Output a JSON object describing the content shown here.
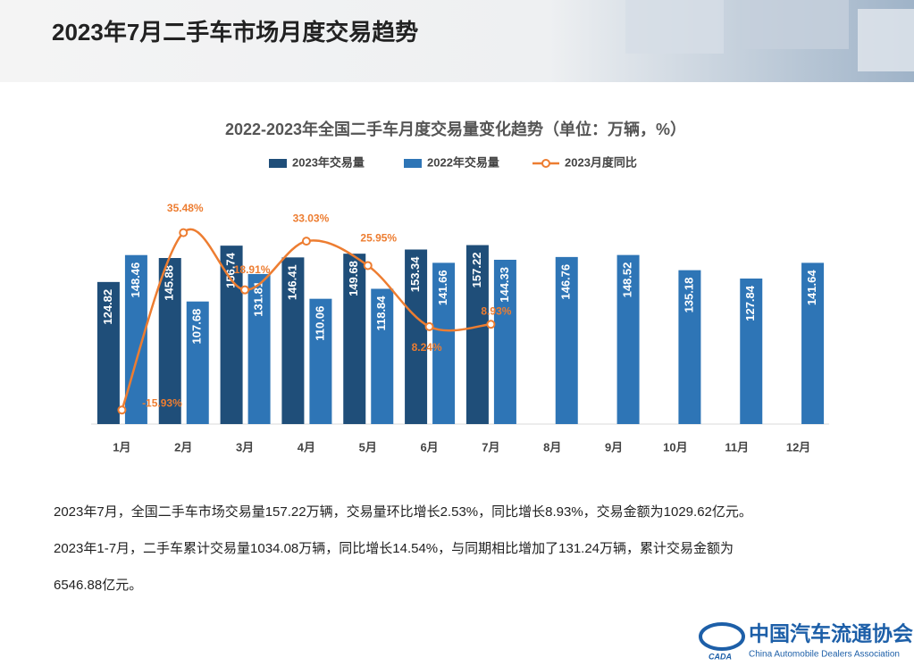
{
  "header": {
    "title": "2023年7月二手车市场月度交易趋势"
  },
  "chart_data": {
    "type": "bar",
    "title": "2022-2023年全国二手车月度交易量变化趋势（单位：万辆，%）",
    "categories": [
      "1月",
      "2月",
      "3月",
      "4月",
      "5月",
      "6月",
      "7月",
      "8月",
      "9月",
      "10月",
      "11月",
      "12月"
    ],
    "series": [
      {
        "name": "2023年交易量",
        "color": "#1f4e79",
        "values": [
          124.82,
          145.88,
          156.74,
          146.41,
          149.68,
          153.34,
          157.22,
          null,
          null,
          null,
          null,
          null
        ]
      },
      {
        "name": "2022年交易量",
        "color": "#2e75b6",
        "values": [
          148.46,
          107.68,
          131.81,
          110.06,
          118.84,
          141.66,
          144.33,
          146.76,
          148.52,
          135.18,
          127.84,
          141.64
        ]
      },
      {
        "name": "2023月度同比",
        "type": "line",
        "axis": "y2",
        "color": "#ed7d31",
        "values": [
          -15.93,
          35.48,
          18.91,
          33.03,
          25.95,
          8.24,
          8.93,
          null,
          null,
          null,
          null,
          null
        ],
        "value_labels": [
          "-15.93%",
          "35.48%",
          "18.91%",
          "33.03%",
          "25.95%",
          "8.24%",
          "8.93%",
          null,
          null,
          null,
          null,
          null
        ]
      }
    ],
    "ylim": [
      0,
      200
    ],
    "y2lim": [
      -20,
      46
    ],
    "legend": "top",
    "grid": false
  },
  "body": {
    "lines": [
      "2023年7月，全国二手车市场交易量157.22万辆，交易量环比增长2.53%，同比增长8.93%，交易金额为1029.62亿元。",
      "2023年1-7月，二手车累计交易量1034.08万辆，同比增长14.54%，与同期相比增加了131.24万辆，累计交易金额为",
      "6546.88亿元。"
    ]
  },
  "footer": {
    "logo": "CADA",
    "org_cn": "中国汽车流通协会",
    "org_en": "China Automobile Dealers Association"
  }
}
